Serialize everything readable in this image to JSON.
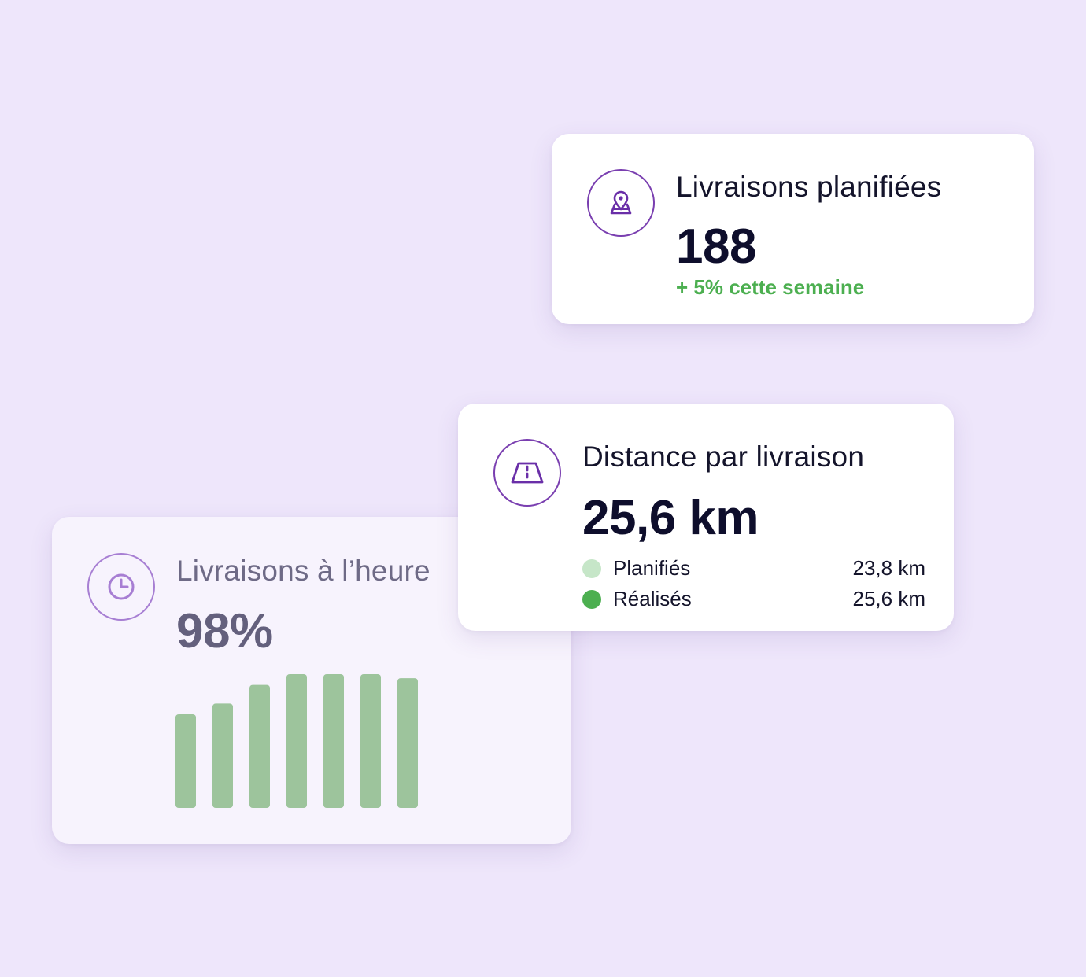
{
  "colors": {
    "background": "#EEE6FB",
    "accent_purple": "#7A3FB0",
    "positive_green": "#4CAF50",
    "bar_green": "#9DC49C",
    "planned_dot": "#C6E6C8",
    "realised_dot": "#4CAF50"
  },
  "cards": {
    "ontime": {
      "icon": "clock-icon",
      "title": "Livraisons à l’heure",
      "value": "98%"
    },
    "planned": {
      "icon": "map-pin-icon",
      "title": "Livraisons planifiées",
      "value": "188",
      "trend": "+ 5% cette semaine"
    },
    "distance": {
      "icon": "road-icon",
      "title": "Distance par livraison",
      "value": "25,6 km",
      "legend": [
        {
          "label": "Planifiés",
          "value": "23,8 km",
          "color": "#C6E6C8"
        },
        {
          "label": "Réalisés",
          "value": "25,6 km",
          "color": "#4CAF50"
        }
      ]
    }
  },
  "chart_data": {
    "type": "bar",
    "title": "",
    "categories": [
      "",
      "",
      "",
      "",
      "",
      "",
      ""
    ],
    "values": [
      70,
      78,
      92,
      100,
      100,
      100,
      97
    ],
    "xlabel": "",
    "ylabel": "",
    "ylim": [
      0,
      100
    ],
    "grid": false
  }
}
